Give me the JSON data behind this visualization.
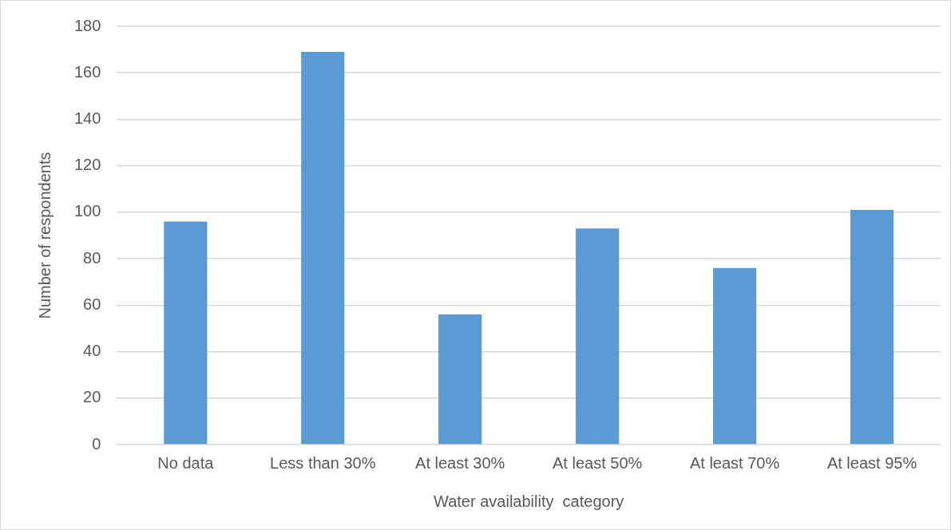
{
  "chart_data": {
    "type": "bar",
    "xlabel": "Water availability  category",
    "ylabel": "Number of respondents",
    "categories": [
      "No data",
      "Less than 30%",
      "At least 30%",
      "At least 50%",
      "At least 70%",
      "At least 95%"
    ],
    "values": [
      96,
      169,
      56,
      93,
      76,
      101
    ],
    "color": "#5b9bd5",
    "ylim": [
      0,
      180
    ],
    "yticks": [
      0,
      20,
      40,
      60,
      80,
      100,
      120,
      140,
      160,
      180
    ],
    "grid": "y"
  }
}
